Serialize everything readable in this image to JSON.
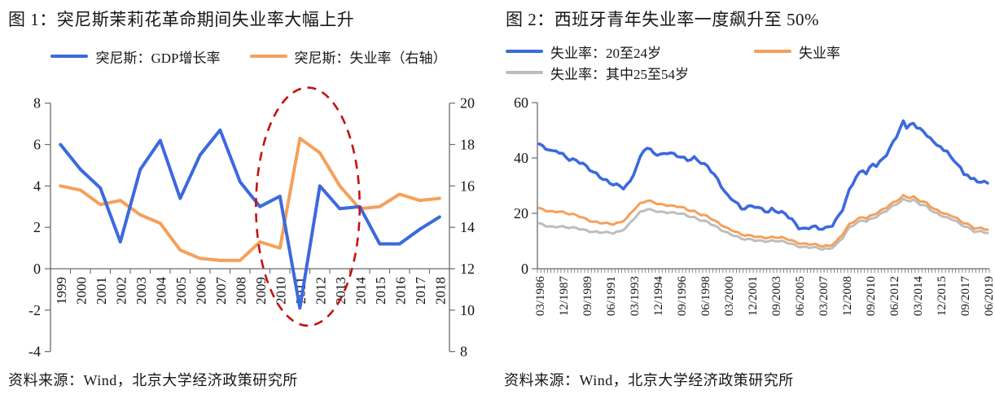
{
  "source_note": "资料来源：Wind，北京大学经济政策研究所",
  "colors": {
    "blue": "#3C69DE",
    "orange": "#F5A05A",
    "gray": "#BDBDBD",
    "annotation_red": "#C81010",
    "axis": "#6b6b6b",
    "text": "#161616"
  },
  "chart_data": [
    {
      "type": "line",
      "title": "图 1：突尼斯茉莉花革命期间失业率大幅上升",
      "categories": [
        "1999",
        "2000",
        "2001",
        "2002",
        "2003",
        "2004",
        "2005",
        "2006",
        "2007",
        "2008",
        "2009",
        "2010",
        "2011",
        "2012",
        "2013",
        "2014",
        "2015",
        "2016",
        "2017",
        "2018"
      ],
      "left_axis": {
        "min": -4,
        "max": 8,
        "ticks": [
          8,
          6,
          4,
          2,
          0,
          -2,
          -4
        ]
      },
      "right_axis": {
        "min": 8,
        "max": 20,
        "ticks": [
          20,
          18,
          16,
          14,
          12,
          10,
          8
        ]
      },
      "series": [
        {
          "name": "突尼斯：GDP增长率",
          "color": "#3C69DE",
          "axis": "left",
          "values": [
            6.0,
            4.8,
            3.9,
            1.3,
            4.8,
            6.2,
            3.4,
            5.5,
            6.7,
            4.2,
            3.0,
            3.5,
            -1.9,
            4.0,
            2.9,
            3.0,
            1.2,
            1.2,
            1.9,
            2.5
          ]
        },
        {
          "name": "突尼斯：失业率（右轴）",
          "color": "#F5A05A",
          "axis": "right",
          "values": [
            16.0,
            15.8,
            15.1,
            15.3,
            14.6,
            14.2,
            12.9,
            12.5,
            12.4,
            12.4,
            13.3,
            13.0,
            18.3,
            17.6,
            16.0,
            14.9,
            15.0,
            15.6,
            15.3,
            15.4
          ]
        }
      ],
      "annotation": {
        "shape": "ellipse",
        "style": "dashed",
        "color": "#C81010",
        "center_year": 2011.4,
        "center_value": 3.0,
        "radius_years": 2.6,
        "radius_value": 5.75
      }
    },
    {
      "type": "line",
      "title": "图 2：西班牙青年失业率一度飙升至 50%",
      "x_start": 1986.25,
      "x_step": 0.25,
      "x_points": 134,
      "x_tick_every": 7,
      "x_tick_labels": [
        "03/1986",
        "12/1987",
        "09/1989",
        "06/1991",
        "03/1993",
        "12/1994",
        "09/1996",
        "06/1998",
        "03/2000",
        "12/2001",
        "09/2003",
        "06/2005",
        "03/2007",
        "12/2008",
        "09/2010",
        "06/2012",
        "03/2014",
        "12/2015",
        "09/2017",
        "06/2019"
      ],
      "y_axis": {
        "min": 0,
        "max": 60,
        "ticks": [
          60,
          40,
          20,
          0
        ]
      },
      "series": [
        {
          "name": "失业率：20至24岁",
          "color": "#3C69DE",
          "legend_row": 0,
          "anchors": [
            [
              1986.25,
              44.5
            ],
            [
              1986.75,
              43.5
            ],
            [
              1987.25,
              42.5
            ],
            [
              1987.5,
              43.2
            ],
            [
              1988.0,
              41.3
            ],
            [
              1988.5,
              39.2
            ],
            [
              1989.0,
              38.8
            ],
            [
              1989.5,
              38.0
            ],
            [
              1990.0,
              36.3
            ],
            [
              1990.5,
              34.3
            ],
            [
              1991.0,
              32.2
            ],
            [
              1991.5,
              30.6
            ],
            [
              1992.0,
              30.3
            ],
            [
              1992.5,
              29.6
            ],
            [
              1993.0,
              31.5
            ],
            [
              1993.5,
              37.0
            ],
            [
              1994.0,
              42.5
            ],
            [
              1994.25,
              43.5
            ],
            [
              1994.75,
              42.0
            ],
            [
              1995.25,
              41.4
            ],
            [
              1995.75,
              42.1
            ],
            [
              1996.25,
              41.0
            ],
            [
              1996.75,
              40.1
            ],
            [
              1997.25,
              39.4
            ],
            [
              1997.75,
              40.4
            ],
            [
              1998.25,
              38.6
            ],
            [
              1998.75,
              36.6
            ],
            [
              1999.25,
              33.6
            ],
            [
              1999.75,
              30.0
            ],
            [
              2000.25,
              26.5
            ],
            [
              2000.75,
              24.8
            ],
            [
              2001.25,
              21.4
            ],
            [
              2001.75,
              22.0
            ],
            [
              2002.25,
              22.6
            ],
            [
              2002.75,
              21.8
            ],
            [
              2003.25,
              20.8
            ],
            [
              2003.5,
              21.5
            ],
            [
              2004.0,
              20.2
            ],
            [
              2004.5,
              19.6
            ],
            [
              2005.0,
              17.8
            ],
            [
              2005.5,
              15.2
            ],
            [
              2006.0,
              14.4
            ],
            [
              2006.5,
              15.1
            ],
            [
              2007.0,
              14.2
            ],
            [
              2007.5,
              14.6
            ],
            [
              2008.0,
              16.2
            ],
            [
              2008.5,
              19.5
            ],
            [
              2008.75,
              21.5
            ],
            [
              2009.25,
              28.0
            ],
            [
              2009.75,
              33.0
            ],
            [
              2010.25,
              35.8
            ],
            [
              2010.5,
              34.9
            ],
            [
              2010.75,
              36.6
            ],
            [
              2011.0,
              38.0
            ],
            [
              2011.25,
              37.4
            ],
            [
              2011.75,
              39.3
            ],
            [
              2012.0,
              41.0
            ],
            [
              2012.5,
              45.5
            ],
            [
              2012.75,
              48.0
            ],
            [
              2013.0,
              51.0
            ],
            [
              2013.25,
              53.3
            ],
            [
              2013.5,
              51.2
            ],
            [
              2013.75,
              52.6
            ],
            [
              2014.0,
              52.0
            ],
            [
              2014.25,
              50.5
            ],
            [
              2014.5,
              50.8
            ],
            [
              2014.75,
              49.0
            ],
            [
              2015.0,
              47.5
            ],
            [
              2015.25,
              47.8
            ],
            [
              2015.5,
              46.0
            ],
            [
              2015.75,
              44.5
            ],
            [
              2016.0,
              44.8
            ],
            [
              2016.25,
              43.0
            ],
            [
              2016.5,
              42.0
            ],
            [
              2016.75,
              40.5
            ],
            [
              2017.0,
              39.0
            ],
            [
              2017.25,
              37.0
            ],
            [
              2017.5,
              36.3
            ],
            [
              2017.75,
              34.5
            ],
            [
              2018.0,
              33.8
            ],
            [
              2018.25,
              32.6
            ],
            [
              2018.5,
              33.4
            ],
            [
              2018.75,
              31.5
            ],
            [
              2019.0,
              30.8
            ],
            [
              2019.25,
              31.8
            ],
            [
              2019.5,
              30.8
            ]
          ]
        },
        {
          "name": "失业率",
          "color": "#F5A05A",
          "legend_row": 0,
          "anchors": [
            [
              1986.25,
              21.6
            ],
            [
              1986.75,
              21.0
            ],
            [
              1987.25,
              20.7
            ],
            [
              1987.75,
              20.9
            ],
            [
              1988.25,
              20.0
            ],
            [
              1988.75,
              19.4
            ],
            [
              1989.25,
              18.9
            ],
            [
              1989.75,
              18.0
            ],
            [
              1990.25,
              17.2
            ],
            [
              1990.75,
              16.6
            ],
            [
              1991.25,
              16.2
            ],
            [
              1991.75,
              16.0
            ],
            [
              1992.25,
              16.8
            ],
            [
              1992.75,
              18.5
            ],
            [
              1993.25,
              21.3
            ],
            [
              1993.75,
              23.3
            ],
            [
              1994.25,
              24.5
            ],
            [
              1994.75,
              24.1
            ],
            [
              1995.25,
              23.4
            ],
            [
              1995.75,
              23.0
            ],
            [
              1996.25,
              22.4
            ],
            [
              1996.75,
              22.2
            ],
            [
              1997.25,
              21.4
            ],
            [
              1997.75,
              20.9
            ],
            [
              1998.25,
              19.7
            ],
            [
              1998.75,
              18.7
            ],
            [
              1999.25,
              17.2
            ],
            [
              1999.75,
              15.9
            ],
            [
              2000.25,
              14.7
            ],
            [
              2000.75,
              13.7
            ],
            [
              2001.25,
              12.2
            ],
            [
              2001.75,
              11.8
            ],
            [
              2002.25,
              11.7
            ],
            [
              2002.75,
              11.5
            ],
            [
              2003.25,
              11.4
            ],
            [
              2003.75,
              11.3
            ],
            [
              2004.25,
              11.0
            ],
            [
              2004.75,
              10.6
            ],
            [
              2005.25,
              9.8
            ],
            [
              2005.75,
              9.2
            ],
            [
              2006.25,
              8.9
            ],
            [
              2006.75,
              8.5
            ],
            [
              2007.25,
              8.1
            ],
            [
              2007.75,
              8.4
            ],
            [
              2008.25,
              9.8
            ],
            [
              2008.75,
              12.5
            ],
            [
              2009.25,
              15.8
            ],
            [
              2009.75,
              17.5
            ],
            [
              2010.25,
              18.8
            ],
            [
              2010.5,
              18.5
            ],
            [
              2011.0,
              19.6
            ],
            [
              2011.5,
              20.6
            ],
            [
              2012.0,
              22.0
            ],
            [
              2012.5,
              23.8
            ],
            [
              2013.0,
              25.5
            ],
            [
              2013.25,
              26.5
            ],
            [
              2013.75,
              25.8
            ],
            [
              2014.0,
              25.9
            ],
            [
              2014.5,
              24.3
            ],
            [
              2015.0,
              23.6
            ],
            [
              2015.5,
              21.8
            ],
            [
              2016.0,
              20.8
            ],
            [
              2016.5,
              19.5
            ],
            [
              2017.0,
              18.7
            ],
            [
              2017.5,
              17.0
            ],
            [
              2018.0,
              16.3
            ],
            [
              2018.5,
              14.9
            ],
            [
              2019.0,
              14.6
            ],
            [
              2019.5,
              14.0
            ]
          ]
        },
        {
          "name": "失业率：其中25至54岁",
          "color": "#BDBDBD",
          "legend_row": 1,
          "anchors": [
            [
              1986.25,
              16.1
            ],
            [
              1986.75,
              15.5
            ],
            [
              1987.25,
              15.2
            ],
            [
              1987.75,
              15.5
            ],
            [
              1988.25,
              14.9
            ],
            [
              1988.75,
              14.6
            ],
            [
              1989.25,
              14.4
            ],
            [
              1989.75,
              13.9
            ],
            [
              1990.25,
              13.5
            ],
            [
              1990.75,
              13.2
            ],
            [
              1991.25,
              12.9
            ],
            [
              1991.75,
              12.8
            ],
            [
              1992.25,
              13.6
            ],
            [
              1992.75,
              15.3
            ],
            [
              1993.25,
              18.0
            ],
            [
              1993.75,
              20.2
            ],
            [
              1994.25,
              21.4
            ],
            [
              1994.75,
              21.1
            ],
            [
              1995.25,
              20.7
            ],
            [
              1995.75,
              20.4
            ],
            [
              1996.25,
              20.0
            ],
            [
              1996.75,
              19.8
            ],
            [
              1997.25,
              19.2
            ],
            [
              1997.75,
              18.7
            ],
            [
              1998.25,
              17.6
            ],
            [
              1998.75,
              16.7
            ],
            [
              1999.25,
              15.3
            ],
            [
              1999.75,
              14.1
            ],
            [
              2000.25,
              13.0
            ],
            [
              2000.75,
              12.1
            ],
            [
              2001.25,
              10.7
            ],
            [
              2001.75,
              10.4
            ],
            [
              2002.25,
              10.3
            ],
            [
              2002.75,
              10.2
            ],
            [
              2003.25,
              10.1
            ],
            [
              2003.75,
              10.0
            ],
            [
              2004.25,
              9.7
            ],
            [
              2004.75,
              9.3
            ],
            [
              2005.25,
              8.6
            ],
            [
              2005.75,
              8.0
            ],
            [
              2006.25,
              7.7
            ],
            [
              2006.75,
              7.4
            ],
            [
              2007.25,
              7.0
            ],
            [
              2007.75,
              7.3
            ],
            [
              2008.25,
              8.7
            ],
            [
              2008.75,
              11.2
            ],
            [
              2009.25,
              14.6
            ],
            [
              2009.75,
              16.3
            ],
            [
              2010.25,
              17.6
            ],
            [
              2010.5,
              17.4
            ],
            [
              2011.0,
              18.4
            ],
            [
              2011.5,
              19.4
            ],
            [
              2012.0,
              20.8
            ],
            [
              2012.5,
              22.6
            ],
            [
              2013.0,
              24.3
            ],
            [
              2013.25,
              25.2
            ],
            [
              2013.75,
              24.6
            ],
            [
              2014.0,
              24.7
            ],
            [
              2014.5,
              23.1
            ],
            [
              2015.0,
              22.4
            ],
            [
              2015.5,
              20.6
            ],
            [
              2016.0,
              19.6
            ],
            [
              2016.5,
              18.3
            ],
            [
              2017.0,
              17.5
            ],
            [
              2017.5,
              15.8
            ],
            [
              2018.0,
              15.1
            ],
            [
              2018.5,
              13.7
            ],
            [
              2019.0,
              13.4
            ],
            [
              2019.5,
              12.8
            ]
          ]
        }
      ]
    }
  ]
}
